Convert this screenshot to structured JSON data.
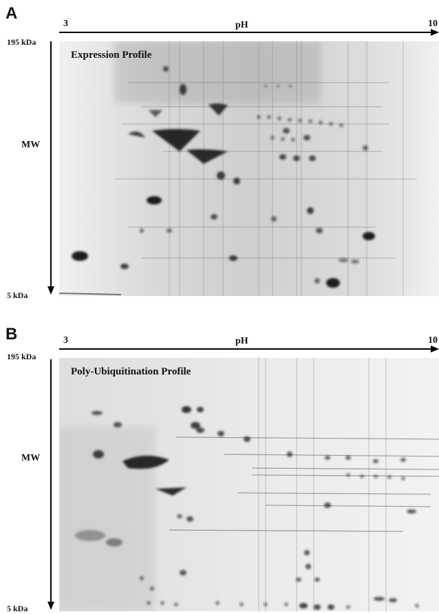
{
  "panels": [
    {
      "label": "A",
      "ph_min": "3",
      "ph_label": "pH",
      "ph_max": "10",
      "mw_top": "195 kDa",
      "mw_label": "MW",
      "mw_bottom": "5 kDa",
      "profile_title": "Expression Profile"
    },
    {
      "label": "B",
      "ph_min": "3",
      "ph_label": "pH",
      "ph_max": "10",
      "mw_top": "195 kDa",
      "mw_label": "MW",
      "mw_bottom": "5 kDa",
      "profile_title": "Poly-Ubiquitination Profile"
    }
  ]
}
